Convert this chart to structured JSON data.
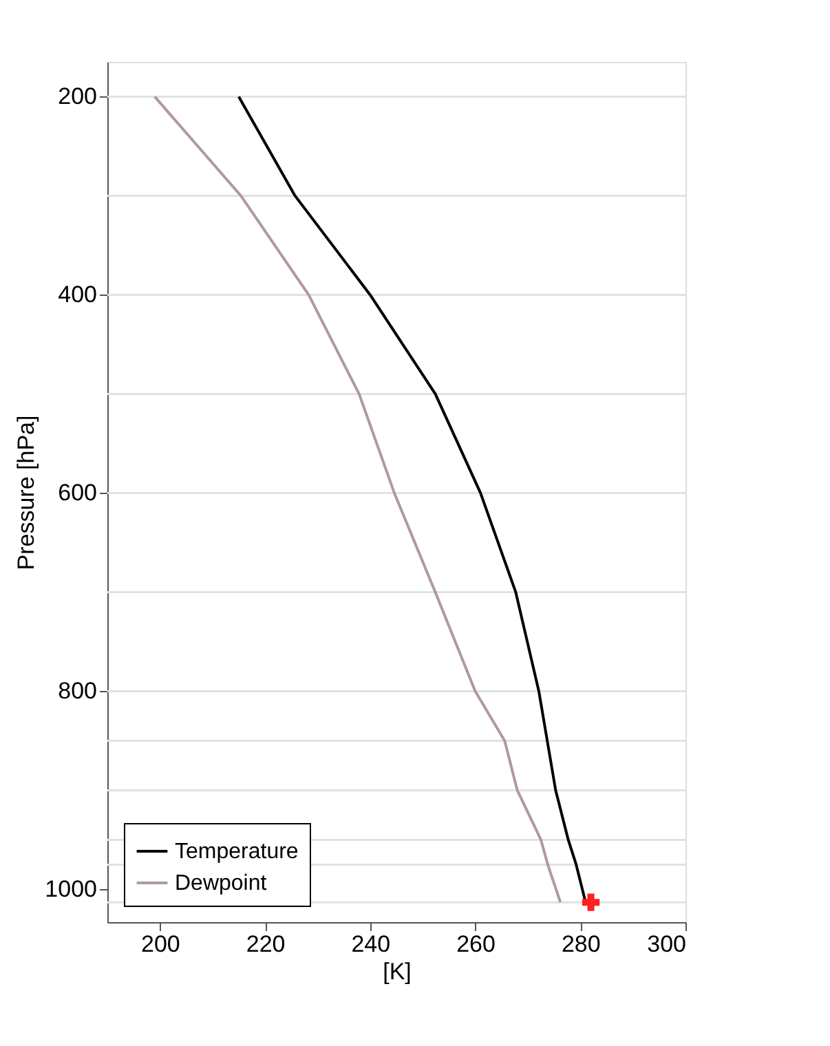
{
  "chart_data": {
    "type": "line",
    "xlabel": "[K]",
    "ylabel": "Pressure [hPa]",
    "xlim": [
      190,
      300
    ],
    "ylim": [
      1033,
      165
    ],
    "xticks": [
      200,
      220,
      240,
      260,
      280,
      300
    ],
    "yticks": [
      200,
      400,
      600,
      800,
      1000
    ],
    "grid": false,
    "legend": "bottom left",
    "line_style": "solid",
    "marker": "none",
    "series": [
      {
        "name": "Temperature",
        "color": "#000000",
        "x": [
          215.0,
          225.7,
          240.0,
          252.4,
          261.0,
          267.7,
          272.1,
          275.3,
          277.7,
          279.2,
          281.0
        ],
        "values": [
          200,
          300,
          400,
          500,
          600,
          700,
          800,
          900,
          950,
          975,
          1013
        ]
      },
      {
        "name": "Dewpoint",
        "color": "#b09a9a",
        "x": [
          199.0,
          215.4,
          228.3,
          237.9,
          244.6,
          252.4,
          260.0,
          265.6,
          268.0,
          272.5,
          273.8,
          276.2
        ],
        "values": [
          200,
          300,
          400,
          500,
          600,
          700,
          800,
          850,
          900,
          950,
          975,
          1013
        ]
      },
      {
        "type": "scatter",
        "marker": "cross",
        "color": "#ff2020",
        "x": [
          282.0
        ],
        "values": [
          1013
        ]
      }
    ],
    "ref_lines": [
      {
        "axis": "y",
        "value": 200,
        "color": "#dde3e3"
      },
      {
        "axis": "y",
        "value": 300,
        "color": "#dde3e3"
      },
      {
        "axis": "y",
        "value": 400,
        "color": "#dde3e3"
      },
      {
        "axis": "y",
        "value": 500,
        "color": "#dde3e3"
      },
      {
        "axis": "y",
        "value": 600,
        "color": "#dde3e3"
      },
      {
        "axis": "y",
        "value": 700,
        "color": "#dde3e3"
      },
      {
        "axis": "y",
        "value": 800,
        "color": "#dde3e3"
      },
      {
        "axis": "y",
        "value": 850,
        "color": "#dde3e3"
      },
      {
        "axis": "y",
        "value": 900,
        "color": "#dde3e3"
      },
      {
        "axis": "y",
        "value": 950,
        "color": "#dde3e3"
      },
      {
        "axis": "y",
        "value": 975,
        "color": "#dde3e3"
      },
      {
        "axis": "y",
        "value": 1013,
        "color": "#dde3e3"
      }
    ]
  }
}
